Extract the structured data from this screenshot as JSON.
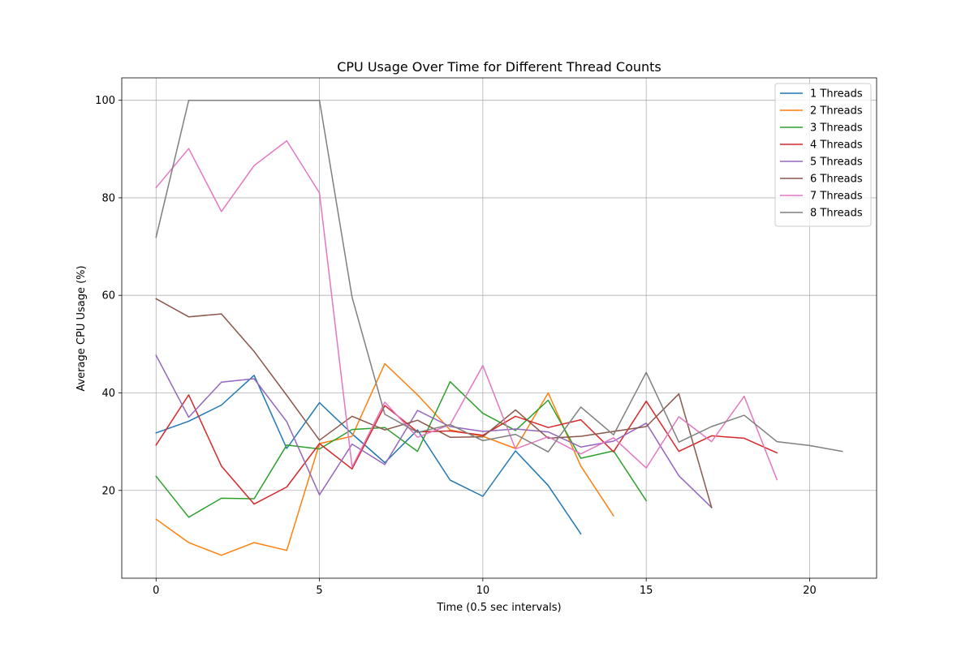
{
  "chart_data": {
    "type": "line",
    "title": "CPU Usage Over Time for Different Thread Counts",
    "xlabel": "Time (0.5 sec intervals)",
    "ylabel": "Average CPU Usage (%)",
    "xlim": [
      -1.05,
      22.05
    ],
    "ylim": [
      2.0,
      104.6
    ],
    "xticks": [
      0,
      5,
      10,
      15,
      20
    ],
    "yticks": [
      20,
      40,
      60,
      80,
      100
    ],
    "grid": true,
    "legend_position": "top-right",
    "series": [
      {
        "name": "1 Threads",
        "color": "#1f77b4",
        "x": [
          0,
          1,
          2,
          3,
          4,
          5,
          6,
          7,
          8,
          9,
          10,
          11,
          12,
          13
        ],
        "values": [
          31.8,
          34.2,
          37.5,
          43.6,
          28.6,
          38.0,
          31.6,
          25.7,
          32.4,
          22.1,
          18.8,
          28.1,
          21.0,
          11.1
        ]
      },
      {
        "name": "2 Threads",
        "color": "#ff7f0e",
        "x": [
          0,
          1,
          2,
          3,
          4,
          5,
          6,
          7,
          8,
          9,
          10,
          11,
          12,
          13,
          14
        ],
        "values": [
          14.1,
          9.3,
          6.7,
          9.3,
          7.7,
          29.6,
          31.1,
          46.0,
          39.6,
          32.4,
          31.1,
          28.6,
          40.0,
          25.0,
          14.8
        ]
      },
      {
        "name": "3 Threads",
        "color": "#2ca02c",
        "x": [
          0,
          1,
          2,
          3,
          4,
          5,
          6,
          7,
          8,
          9,
          10,
          11,
          12,
          13,
          14,
          15
        ],
        "values": [
          22.9,
          14.5,
          18.4,
          18.3,
          29.3,
          28.5,
          32.5,
          32.9,
          28.0,
          42.3,
          35.8,
          32.3,
          38.5,
          26.6,
          28.1,
          17.9
        ]
      },
      {
        "name": "4 Threads",
        "color": "#d62728",
        "x": [
          0,
          1,
          2,
          3,
          4,
          5,
          6,
          7,
          8,
          9,
          10,
          11,
          12,
          13,
          14,
          15,
          16,
          17,
          18,
          19
        ],
        "values": [
          29.3,
          39.6,
          25.0,
          17.2,
          20.7,
          29.6,
          24.4,
          37.4,
          32.0,
          32.2,
          31.3,
          35.2,
          32.9,
          34.5,
          27.9,
          38.3,
          28.0,
          31.2,
          30.7,
          27.7
        ]
      },
      {
        "name": "5 Threads",
        "color": "#9467bd",
        "x": [
          0,
          1,
          2,
          3,
          4,
          5,
          6,
          7,
          8,
          9,
          10,
          11,
          12,
          13,
          14,
          15,
          16,
          17
        ],
        "values": [
          47.7,
          35.0,
          42.2,
          42.9,
          34.1,
          19.1,
          29.5,
          25.3,
          36.4,
          33.1,
          32.1,
          32.6,
          32.0,
          28.9,
          30.1,
          33.8,
          23.0,
          16.5
        ]
      },
      {
        "name": "6 Threads",
        "color": "#8c564b",
        "x": [
          0,
          1,
          2,
          3,
          4,
          5,
          6,
          7,
          8,
          9,
          10,
          11,
          12,
          13,
          14,
          15,
          16,
          17
        ],
        "values": [
          59.3,
          55.6,
          56.2,
          48.5,
          39.5,
          30.3,
          35.2,
          32.4,
          34.4,
          30.9,
          31.0,
          36.5,
          30.7,
          31.1,
          32.1,
          33.1,
          39.8,
          16.5
        ]
      },
      {
        "name": "7 Threads",
        "color": "#e377c2",
        "x": [
          0,
          1,
          2,
          3,
          4,
          5,
          6,
          7,
          8,
          9,
          10,
          11,
          12,
          13,
          14,
          15,
          16,
          17,
          18,
          19
        ],
        "values": [
          82.1,
          90.1,
          77.2,
          86.6,
          91.7,
          81.0,
          24.8,
          38.1,
          30.9,
          33.5,
          45.6,
          28.5,
          31.0,
          27.5,
          30.8,
          24.6,
          35.1,
          30.0,
          39.3,
          22.2
        ]
      },
      {
        "name": "8 Threads",
        "color": "#7f7f7f",
        "x": [
          0,
          1,
          2,
          3,
          4,
          5,
          6,
          7,
          8,
          9,
          10,
          11,
          12,
          13,
          14,
          15,
          16,
          17,
          18,
          19,
          20,
          21
        ],
        "values": [
          71.9,
          100.0,
          100.0,
          100.0,
          100.0,
          100.0,
          59.6,
          35.6,
          31.9,
          33.5,
          30.2,
          31.5,
          27.9,
          37.1,
          31.4,
          44.2,
          29.9,
          33.1,
          35.4,
          30.0,
          29.2,
          28.0
        ]
      }
    ]
  }
}
